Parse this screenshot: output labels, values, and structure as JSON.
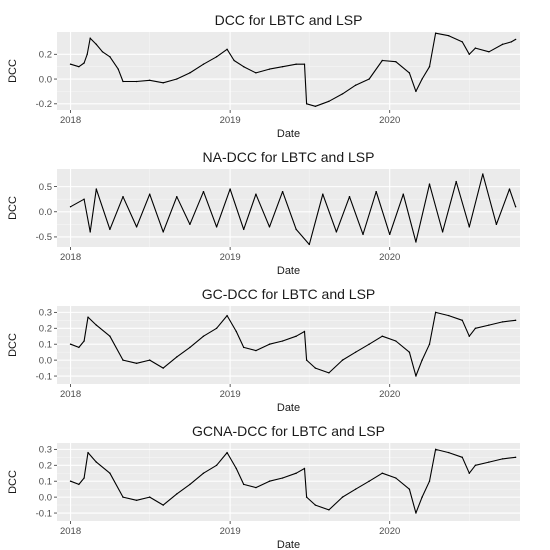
{
  "chart_data": [
    {
      "type": "line",
      "title": "DCC for LBTC and LSP",
      "xlabel": "Date",
      "ylabel": "DCC",
      "x_ticks": [
        "2018",
        "2019",
        "2020"
      ],
      "y_ticks": [
        "-0.2",
        "0.0",
        "0.2"
      ],
      "xlim": [
        "2017-12-01",
        "2020-10-25"
      ],
      "ylim": [
        -0.25,
        0.38
      ],
      "grid": true,
      "series": [
        {
          "points": [
            [
              "2018-01-01",
              0.12
            ],
            [
              "2018-01-20",
              0.1
            ],
            [
              "2018-02-01",
              0.13
            ],
            [
              "2018-02-08",
              0.2
            ],
            [
              "2018-02-15",
              0.33
            ],
            [
              "2018-03-01",
              0.28
            ],
            [
              "2018-03-15",
              0.22
            ],
            [
              "2018-04-01",
              0.18
            ],
            [
              "2018-04-20",
              0.08
            ],
            [
              "2018-05-01",
              -0.02
            ],
            [
              "2018-06-01",
              -0.02
            ],
            [
              "2018-07-01",
              -0.01
            ],
            [
              "2018-08-01",
              -0.03
            ],
            [
              "2018-09-01",
              0.0
            ],
            [
              "2018-10-01",
              0.05
            ],
            [
              "2018-11-01",
              0.12
            ],
            [
              "2018-12-01",
              0.18
            ],
            [
              "2018-12-25",
              0.24
            ],
            [
              "2019-01-10",
              0.15
            ],
            [
              "2019-02-01",
              0.1
            ],
            [
              "2019-03-01",
              0.05
            ],
            [
              "2019-04-01",
              0.08
            ],
            [
              "2019-05-01",
              0.1
            ],
            [
              "2019-06-01",
              0.12
            ],
            [
              "2019-06-20",
              0.12
            ],
            [
              "2019-06-25",
              -0.2
            ],
            [
              "2019-07-15",
              -0.22
            ],
            [
              "2019-08-15",
              -0.18
            ],
            [
              "2019-09-15",
              -0.12
            ],
            [
              "2019-10-15",
              -0.05
            ],
            [
              "2019-11-15",
              0.0
            ],
            [
              "2019-12-15",
              0.15
            ],
            [
              "2020-01-15",
              0.14
            ],
            [
              "2020-02-15",
              0.05
            ],
            [
              "2020-03-01",
              -0.1
            ],
            [
              "2020-03-15",
              0.0
            ],
            [
              "2020-04-01",
              0.1
            ],
            [
              "2020-04-15",
              0.37
            ],
            [
              "2020-05-15",
              0.35
            ],
            [
              "2020-06-15",
              0.3
            ],
            [
              "2020-07-01",
              0.2
            ],
            [
              "2020-07-15",
              0.25
            ],
            [
              "2020-08-15",
              0.22
            ],
            [
              "2020-09-15",
              0.28
            ],
            [
              "2020-10-05",
              0.3
            ],
            [
              "2020-10-15",
              0.32
            ]
          ]
        }
      ]
    },
    {
      "type": "line",
      "title": "NA-DCC for LBTC and LSP",
      "xlabel": "Date",
      "ylabel": "DCC",
      "x_ticks": [
        "2018",
        "2019",
        "2020"
      ],
      "y_ticks": [
        "-0.5",
        "0.0",
        "0.5"
      ],
      "xlim": [
        "2017-12-01",
        "2020-10-25"
      ],
      "ylim": [
        -0.7,
        0.85
      ],
      "grid": true,
      "series": [
        {
          "points": [
            [
              "2018-01-01",
              0.1
            ],
            [
              "2018-02-01",
              0.25
            ],
            [
              "2018-02-15",
              -0.4
            ],
            [
              "2018-03-01",
              0.45
            ],
            [
              "2018-04-01",
              -0.35
            ],
            [
              "2018-05-01",
              0.3
            ],
            [
              "2018-06-01",
              -0.3
            ],
            [
              "2018-07-01",
              0.35
            ],
            [
              "2018-08-01",
              -0.4
            ],
            [
              "2018-09-01",
              0.3
            ],
            [
              "2018-10-01",
              -0.25
            ],
            [
              "2018-11-01",
              0.4
            ],
            [
              "2018-12-01",
              -0.3
            ],
            [
              "2019-01-01",
              0.45
            ],
            [
              "2019-02-01",
              -0.35
            ],
            [
              "2019-03-01",
              0.35
            ],
            [
              "2019-04-01",
              -0.3
            ],
            [
              "2019-05-01",
              0.4
            ],
            [
              "2019-06-01",
              -0.35
            ],
            [
              "2019-07-01",
              -0.65
            ],
            [
              "2019-08-01",
              0.35
            ],
            [
              "2019-09-01",
              -0.4
            ],
            [
              "2019-10-01",
              0.3
            ],
            [
              "2019-11-01",
              -0.45
            ],
            [
              "2019-12-01",
              0.4
            ],
            [
              "2020-01-01",
              -0.45
            ],
            [
              "2020-02-01",
              0.35
            ],
            [
              "2020-03-01",
              -0.6
            ],
            [
              "2020-04-01",
              0.55
            ],
            [
              "2020-05-01",
              -0.4
            ],
            [
              "2020-06-01",
              0.6
            ],
            [
              "2020-07-01",
              -0.3
            ],
            [
              "2020-08-01",
              0.75
            ],
            [
              "2020-09-01",
              -0.25
            ],
            [
              "2020-10-01",
              0.45
            ],
            [
              "2020-10-15",
              0.1
            ]
          ]
        }
      ]
    },
    {
      "type": "line",
      "title": "GC-DCC for LBTC and LSP",
      "xlabel": "Date",
      "ylabel": "DCC",
      "x_ticks": [
        "2018",
        "2019",
        "2020"
      ],
      "y_ticks": [
        "-0.1",
        "0.0",
        "0.1",
        "0.2",
        "0.3"
      ],
      "xlim": [
        "2017-12-01",
        "2020-10-25"
      ],
      "ylim": [
        -0.15,
        0.34
      ],
      "grid": true,
      "series": [
        {
          "points": [
            [
              "2018-01-01",
              0.1
            ],
            [
              "2018-01-20",
              0.08
            ],
            [
              "2018-02-01",
              0.12
            ],
            [
              "2018-02-10",
              0.27
            ],
            [
              "2018-03-01",
              0.22
            ],
            [
              "2018-04-01",
              0.15
            ],
            [
              "2018-05-01",
              0.0
            ],
            [
              "2018-06-01",
              -0.02
            ],
            [
              "2018-07-01",
              0.0
            ],
            [
              "2018-08-01",
              -0.05
            ],
            [
              "2018-09-01",
              0.02
            ],
            [
              "2018-10-01",
              0.08
            ],
            [
              "2018-11-01",
              0.15
            ],
            [
              "2018-12-01",
              0.2
            ],
            [
              "2018-12-25",
              0.28
            ],
            [
              "2019-01-15",
              0.18
            ],
            [
              "2019-02-01",
              0.08
            ],
            [
              "2019-03-01",
              0.06
            ],
            [
              "2019-04-01",
              0.1
            ],
            [
              "2019-05-01",
              0.12
            ],
            [
              "2019-06-01",
              0.15
            ],
            [
              "2019-06-20",
              0.18
            ],
            [
              "2019-06-25",
              0.0
            ],
            [
              "2019-07-15",
              -0.05
            ],
            [
              "2019-08-15",
              -0.08
            ],
            [
              "2019-09-15",
              0.0
            ],
            [
              "2019-10-15",
              0.05
            ],
            [
              "2019-11-15",
              0.1
            ],
            [
              "2019-12-15",
              0.15
            ],
            [
              "2020-01-15",
              0.12
            ],
            [
              "2020-02-15",
              0.05
            ],
            [
              "2020-03-01",
              -0.1
            ],
            [
              "2020-03-15",
              0.0
            ],
            [
              "2020-04-01",
              0.1
            ],
            [
              "2020-04-15",
              0.3
            ],
            [
              "2020-05-15",
              0.28
            ],
            [
              "2020-06-15",
              0.25
            ],
            [
              "2020-07-01",
              0.15
            ],
            [
              "2020-07-15",
              0.2
            ],
            [
              "2020-08-15",
              0.22
            ],
            [
              "2020-09-15",
              0.24
            ],
            [
              "2020-10-15",
              0.25
            ]
          ]
        }
      ]
    },
    {
      "type": "line",
      "title": "GCNA-DCC for LBTC and LSP",
      "xlabel": "Date",
      "ylabel": "DCC",
      "x_ticks": [
        "2018",
        "2019",
        "2020"
      ],
      "y_ticks": [
        "-0.1",
        "0.0",
        "0.1",
        "0.2",
        "0.3"
      ],
      "xlim": [
        "2017-12-01",
        "2020-10-25"
      ],
      "ylim": [
        -0.15,
        0.34
      ],
      "grid": true,
      "series": [
        {
          "points": [
            [
              "2018-01-01",
              0.1
            ],
            [
              "2018-01-20",
              0.08
            ],
            [
              "2018-02-01",
              0.12
            ],
            [
              "2018-02-10",
              0.28
            ],
            [
              "2018-03-01",
              0.22
            ],
            [
              "2018-04-01",
              0.15
            ],
            [
              "2018-05-01",
              0.0
            ],
            [
              "2018-06-01",
              -0.02
            ],
            [
              "2018-07-01",
              0.0
            ],
            [
              "2018-08-01",
              -0.05
            ],
            [
              "2018-09-01",
              0.02
            ],
            [
              "2018-10-01",
              0.08
            ],
            [
              "2018-11-01",
              0.15
            ],
            [
              "2018-12-01",
              0.2
            ],
            [
              "2018-12-25",
              0.28
            ],
            [
              "2019-01-15",
              0.18
            ],
            [
              "2019-02-01",
              0.08
            ],
            [
              "2019-03-01",
              0.06
            ],
            [
              "2019-04-01",
              0.1
            ],
            [
              "2019-05-01",
              0.12
            ],
            [
              "2019-06-01",
              0.15
            ],
            [
              "2019-06-20",
              0.18
            ],
            [
              "2019-06-25",
              0.0
            ],
            [
              "2019-07-15",
              -0.05
            ],
            [
              "2019-08-15",
              -0.08
            ],
            [
              "2019-09-15",
              0.0
            ],
            [
              "2019-10-15",
              0.05
            ],
            [
              "2019-11-15",
              0.1
            ],
            [
              "2019-12-15",
              0.15
            ],
            [
              "2020-01-15",
              0.12
            ],
            [
              "2020-02-15",
              0.05
            ],
            [
              "2020-03-01",
              -0.1
            ],
            [
              "2020-03-15",
              0.0
            ],
            [
              "2020-04-01",
              0.1
            ],
            [
              "2020-04-15",
              0.3
            ],
            [
              "2020-05-15",
              0.28
            ],
            [
              "2020-06-15",
              0.25
            ],
            [
              "2020-07-01",
              0.15
            ],
            [
              "2020-07-15",
              0.2
            ],
            [
              "2020-08-15",
              0.22
            ],
            [
              "2020-09-15",
              0.24
            ],
            [
              "2020-10-15",
              0.25
            ]
          ]
        }
      ]
    }
  ],
  "colors": {
    "panel_background": "#ebebeb",
    "grid_major": "#ffffff",
    "grid_minor": "#f5f5f5",
    "line": "#000000",
    "text": "#1a1a1a",
    "tick_text": "#4d4d4d"
  }
}
